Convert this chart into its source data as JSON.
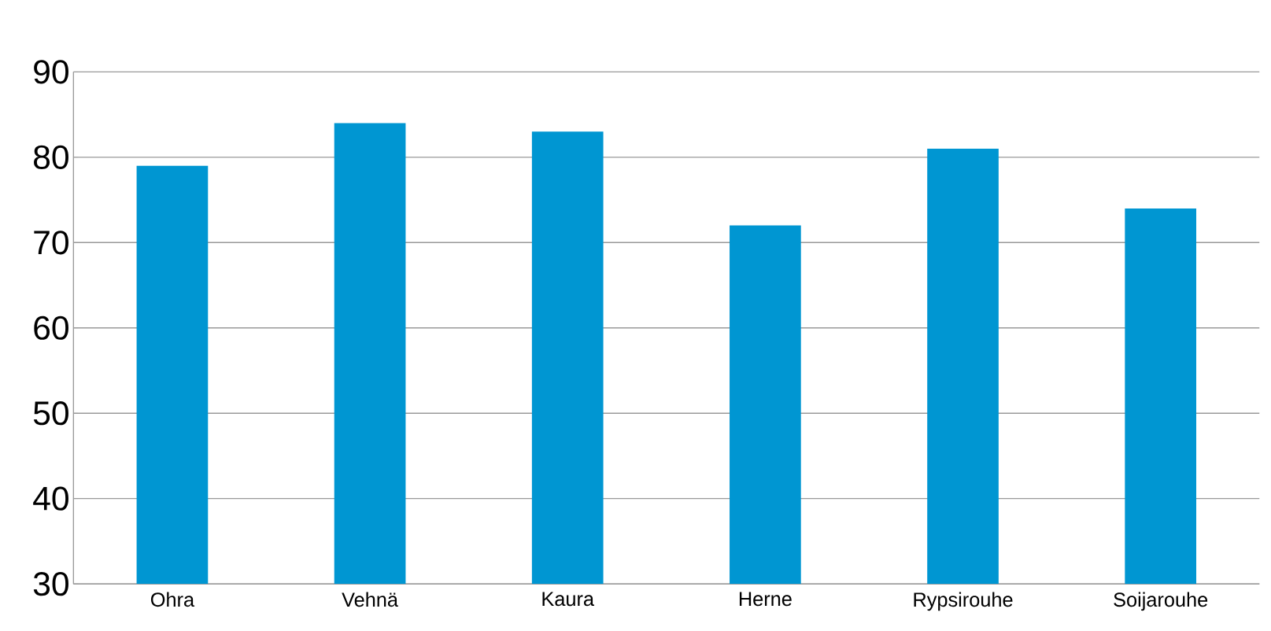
{
  "chart_data": {
    "type": "bar",
    "categories": [
      "Ohra",
      "Vehnä",
      "Kaura",
      "Herne",
      "Rypsirouhe",
      "Soijarouhe"
    ],
    "values": [
      79,
      84,
      83,
      72,
      81,
      74
    ],
    "color": "#0096d2",
    "ylim": [
      30,
      90
    ],
    "yticks": [
      30,
      40,
      50,
      60,
      70,
      80,
      90
    ],
    "grid": "y"
  }
}
